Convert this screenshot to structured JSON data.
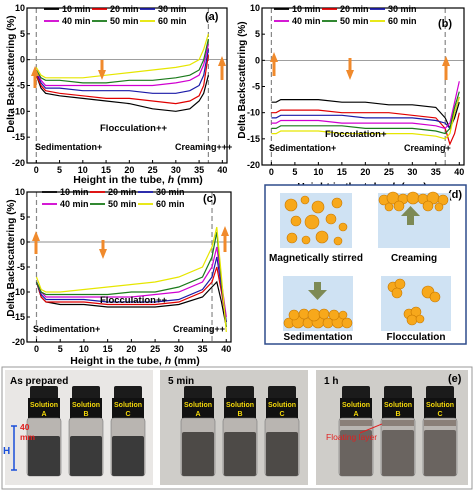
{
  "chart_data": [
    {
      "type": "line",
      "panel_label": "(a)",
      "xlabel": "Height in the tube, h (mm)",
      "ylabel": "Delta Backscattering (%)",
      "xlim": [
        -2,
        41
      ],
      "ylim": [
        -20,
        10
      ],
      "xticks": [
        "0",
        "5",
        "10",
        "15",
        "20",
        "25",
        "30",
        "35",
        "40"
      ],
      "yticks": [
        "-20",
        "-15",
        "-10",
        "-5",
        "0",
        "5",
        "10"
      ],
      "legend": [
        "10 min",
        "20 min",
        "30 min",
        "40 min",
        "50 min",
        "60 min"
      ],
      "annotations": [
        "Flocculation++",
        "Sedimentation+",
        "Creaming+++"
      ],
      "series": [
        {
          "name": "10 min",
          "color": "#000000",
          "x": [
            0,
            1,
            2,
            5,
            10,
            15,
            20,
            25,
            30,
            33,
            35,
            36,
            37
          ],
          "y": [
            -3,
            -5.5,
            -6.5,
            -7,
            -7.5,
            -8,
            -8.5,
            -9.5,
            -10,
            -9.5,
            -8,
            -6.5,
            -3
          ]
        },
        {
          "name": "20 min",
          "color": "#e00000",
          "x": [
            0,
            1,
            2,
            5,
            10,
            15,
            20,
            25,
            30,
            33,
            35,
            36,
            37
          ],
          "y": [
            -3,
            -5,
            -6,
            -6.5,
            -7,
            -7.5,
            -7.5,
            -8,
            -8.5,
            -8,
            -7,
            -5,
            1
          ]
        },
        {
          "name": "30 min",
          "color": "#1a1aa8",
          "x": [
            0,
            1,
            2,
            5,
            10,
            15,
            20,
            25,
            30,
            33,
            35,
            36,
            37
          ],
          "y": [
            -2.5,
            -4.5,
            -5.5,
            -5.5,
            -6,
            -6,
            -6,
            -6.5,
            -6.5,
            -6,
            -5,
            -3,
            2
          ]
        },
        {
          "name": "40 min",
          "color": "#d000d0",
          "x": [
            0,
            1,
            2,
            5,
            10,
            15,
            20,
            25,
            30,
            33,
            35,
            36,
            37
          ],
          "y": [
            -2,
            -4,
            -5,
            -5,
            -5,
            -5,
            -5,
            -5,
            -4.5,
            -4,
            -3,
            -1,
            3
          ]
        },
        {
          "name": "50 min",
          "color": "#1a7a1a",
          "x": [
            0,
            1,
            2,
            5,
            10,
            15,
            20,
            25,
            30,
            33,
            35,
            36,
            37
          ],
          "y": [
            -2,
            -3.5,
            -4,
            -4,
            -4.5,
            -4.5,
            -4,
            -4,
            -3.5,
            -3,
            -2,
            0,
            4
          ]
        },
        {
          "name": "60 min",
          "color": "#e6e600",
          "x": [
            0,
            1,
            2,
            5,
            10,
            15,
            20,
            25,
            30,
            33,
            35,
            36,
            37
          ],
          "y": [
            -1.5,
            -3,
            -3.5,
            -3.5,
            -3.5,
            -3,
            -2.5,
            -2,
            -1.5,
            -1,
            0,
            2,
            5
          ]
        }
      ]
    },
    {
      "type": "line",
      "panel_label": "(b)",
      "xlabel": "Height in the tube, h (mm)",
      "ylabel": "Delta Backscattering (%)",
      "xlim": [
        -2,
        41
      ],
      "ylim": [
        -20,
        10
      ],
      "xticks": [
        "0",
        "5",
        "10",
        "15",
        "20",
        "25",
        "30",
        "35",
        "40"
      ],
      "yticks": [
        "-20",
        "-15",
        "-10",
        "-5",
        "0",
        "5",
        "10"
      ],
      "legend": [
        "10 min",
        "20 min",
        "30 min",
        "40 min",
        "50 min",
        "60 min"
      ],
      "annotations": [
        "Flocculation+",
        "Sedimentation+",
        "Creaming+"
      ],
      "series": [
        {
          "name": "10 min",
          "color": "#000000",
          "x": [
            0,
            1,
            2,
            5,
            10,
            15,
            20,
            25,
            30,
            35,
            37,
            38,
            39,
            40
          ],
          "y": [
            -8,
            -8,
            -7.5,
            -7.5,
            -7.5,
            -8,
            -8,
            -8.5,
            -8.5,
            -9,
            -11,
            -13,
            -11,
            -8
          ]
        },
        {
          "name": "20 min",
          "color": "#e00000",
          "x": [
            0,
            1,
            2,
            5,
            10,
            15,
            20,
            25,
            30,
            35,
            37,
            38,
            39,
            40
          ],
          "y": [
            -10,
            -10,
            -9.5,
            -9.5,
            -9.5,
            -10,
            -10,
            -10,
            -10.5,
            -11,
            -13,
            -16,
            -14,
            -10
          ]
        },
        {
          "name": "30 min",
          "color": "#1a1aa8",
          "x": [
            0,
            1,
            2,
            5,
            10,
            15,
            20,
            25,
            30,
            35,
            37,
            38,
            39,
            40
          ],
          "y": [
            -11,
            -11,
            -10.5,
            -10.5,
            -10.5,
            -10.5,
            -11,
            -11,
            -11,
            -11.5,
            -12,
            -13,
            -10,
            -7
          ]
        },
        {
          "name": "40 min",
          "color": "#d000d0",
          "x": [
            0,
            1,
            2,
            5,
            10,
            15,
            20,
            25,
            30,
            35,
            37,
            38,
            39,
            40
          ],
          "y": [
            -12,
            -12,
            -11.5,
            -11.5,
            -11.5,
            -12,
            -12,
            -12,
            -12,
            -12.5,
            -13,
            -12,
            -8,
            -4
          ]
        },
        {
          "name": "50 min",
          "color": "#1a7a1a",
          "x": [
            0,
            1,
            2,
            5,
            10,
            15,
            20,
            25,
            30,
            35,
            37,
            38,
            39,
            40
          ],
          "y": [
            -13,
            -13,
            -12.5,
            -12.5,
            -12.5,
            -12.5,
            -13,
            -13,
            -13,
            -13.5,
            -14,
            -13,
            -9,
            -6
          ]
        },
        {
          "name": "60 min",
          "color": "#e6e600",
          "x": [
            0,
            1,
            2,
            5,
            10,
            15,
            20,
            25,
            30,
            35,
            37,
            38,
            39,
            40
          ],
          "y": [
            -14,
            -14,
            -13.5,
            -13.5,
            -13.5,
            -14,
            -14,
            -14,
            -14,
            -14.5,
            -15,
            -14,
            -10,
            -7
          ]
        }
      ]
    },
    {
      "type": "line",
      "panel_label": "(c)",
      "xlabel": "Height in the tube, h (mm)",
      "ylabel": "Delta Backscattering (%)",
      "xlim": [
        -2,
        41
      ],
      "ylim": [
        -20,
        10
      ],
      "xticks": [
        "0",
        "5",
        "10",
        "15",
        "20",
        "25",
        "30",
        "35",
        "40"
      ],
      "yticks": [
        "-20",
        "-15",
        "-10",
        "-5",
        "0",
        "5",
        "10"
      ],
      "legend": [
        "10 min",
        "20 min",
        "30 min",
        "40 min",
        "50 min",
        "60 min"
      ],
      "annotations": [
        "Flocculation++",
        "Sedimentation+",
        "Creaming++"
      ],
      "series": [
        {
          "name": "10 min",
          "color": "#000000",
          "x": [
            0,
            1,
            2,
            5,
            10,
            15,
            20,
            25,
            30,
            35,
            37,
            38,
            39,
            40
          ],
          "y": [
            -8,
            -11,
            -12,
            -12.5,
            -12.5,
            -13,
            -13,
            -13,
            -12.5,
            -11,
            -9,
            -8,
            -12,
            -17
          ]
        },
        {
          "name": "20 min",
          "color": "#e00000",
          "x": [
            0,
            1,
            2,
            5,
            10,
            15,
            20,
            25,
            30,
            35,
            37,
            38,
            39,
            40
          ],
          "y": [
            -8,
            -11,
            -12,
            -12,
            -12,
            -12.5,
            -12.5,
            -12.5,
            -12,
            -10,
            -8,
            -5,
            -10,
            -16
          ]
        },
        {
          "name": "30 min",
          "color": "#1a1aa8",
          "x": [
            0,
            1,
            2,
            5,
            10,
            15,
            20,
            25,
            30,
            35,
            37,
            38,
            39,
            40
          ],
          "y": [
            -8,
            -10.5,
            -11.5,
            -11.5,
            -11.5,
            -12,
            -12,
            -12,
            -11.5,
            -9.5,
            -7,
            -3,
            -9,
            -16
          ]
        },
        {
          "name": "40 min",
          "color": "#d000d0",
          "x": [
            0,
            1,
            2,
            5,
            10,
            15,
            20,
            25,
            30,
            35,
            37,
            38,
            39,
            40
          ],
          "y": [
            -8,
            -10,
            -11,
            -11,
            -11,
            -11,
            -11,
            -10.5,
            -10,
            -8,
            -5,
            -1,
            -8,
            -15
          ]
        },
        {
          "name": "50 min",
          "color": "#1a7a1a",
          "x": [
            0,
            1,
            2,
            5,
            10,
            15,
            20,
            25,
            30,
            35,
            37,
            38,
            39,
            40
          ],
          "y": [
            -8,
            -10,
            -10.5,
            -10.5,
            -10.5,
            -10.5,
            -10,
            -10,
            -9,
            -7,
            -3,
            2,
            -8,
            -17
          ]
        },
        {
          "name": "60 min",
          "color": "#e6e600",
          "x": [
            0,
            1,
            2,
            5,
            10,
            15,
            20,
            25,
            30,
            35,
            37,
            38,
            39,
            40
          ],
          "y": [
            -7,
            -9.5,
            -10,
            -10,
            -9.5,
            -9,
            -8.5,
            -8,
            -7,
            -5,
            -1,
            3,
            -7,
            -18
          ]
        }
      ]
    }
  ],
  "panel_d": {
    "label": "(d)",
    "captions": [
      "Magnetically stirred",
      "Creaming",
      "Sedimentation",
      "Flocculation"
    ],
    "colors": {
      "background": "#cfe2f3",
      "droplet": "#f7a81b",
      "droplet_edge": "#c77800",
      "arrow": "#7d8a55",
      "border": "#2e4c8c"
    }
  },
  "panel_e": {
    "label": "(e)",
    "photo_titles": [
      "As prepared",
      "5 min",
      "1 h"
    ],
    "vial_labels": [
      {
        "line1": "Solution",
        "line2": "A"
      },
      {
        "line1": "Solution",
        "line2": "B"
      },
      {
        "line1": "Solution",
        "line2": "C"
      }
    ],
    "scale_number": "40",
    "scale_unit": "mm",
    "scale_symbol": "H",
    "floating_layer_label": "Floating layer"
  },
  "colors": {
    "arrow_orange": "#f08a2c",
    "dashed_line": "#888888",
    "label_red": "#e02020"
  }
}
